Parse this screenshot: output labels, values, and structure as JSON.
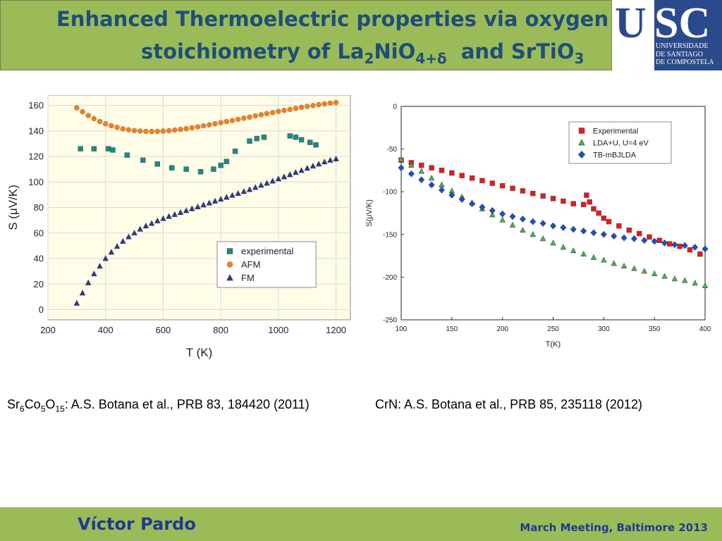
{
  "title": {
    "line1": "Enhanced Thermoelectric properties via oxygen",
    "line2_pre": "stoichiometry of La",
    "line2_sub1": "2",
    "line2_mid": "NiO",
    "line2_sub2": "4+δ",
    "line2_post": "  and SrTiO",
    "line2_sub3": "3"
  },
  "logo": {
    "letters_u": "U",
    "letters_sc": "SC",
    "line1": "UNIVERSIDADE",
    "line2": "DE SANTIAGO",
    "line3": "DE COMPOSTELA"
  },
  "captions": {
    "left": {
      "p1": "Sr",
      "s1": "6",
      "p2": "Co",
      "s2": "5",
      "p3": "O",
      "s3": "15",
      "p4": ": A.S. Botana et al., PRB 83, 184420 (2011)"
    },
    "right": "CrN: A.S. Botana et al., PRB 85, 235118 (2012)"
  },
  "footer": {
    "author": "Víctor Pardo",
    "event": "March Meeting, Baltimore 2013"
  },
  "colors": {
    "header_bg": "#9bbb59",
    "title": "#1f4e79",
    "footer_text": "#1f3a93"
  },
  "chart_data": [
    {
      "type": "scatter",
      "xlabel": "T (K)",
      "ylabel": "S (μV/K)",
      "xlim": [
        200,
        1250
      ],
      "ylim": [
        -8,
        168
      ],
      "xticks": [
        200,
        400,
        600,
        800,
        1000,
        1200
      ],
      "yticks": [
        0,
        20,
        40,
        60,
        80,
        100,
        120,
        140,
        160
      ],
      "legend_position": "lower-right",
      "series": [
        {
          "name": "experimental",
          "marker": "square",
          "color": "#1a8a84",
          "x": [
            313,
            360,
            410,
            425,
            475,
            530,
            580,
            630,
            680,
            730,
            775,
            800,
            820,
            850,
            900,
            925,
            950,
            1040,
            1060,
            1080,
            1110,
            1130
          ],
          "y": [
            126,
            126,
            126,
            125,
            121,
            117,
            114,
            111,
            110,
            108,
            110,
            113,
            116,
            124,
            132,
            134,
            135,
            136,
            135,
            133,
            131,
            129
          ]
        },
        {
          "name": "AFM",
          "marker": "circle",
          "color": "#e8832a",
          "x": [
            300,
            320,
            340,
            360,
            380,
            400,
            420,
            440,
            460,
            480,
            500,
            520,
            540,
            560,
            580,
            600,
            620,
            640,
            660,
            680,
            700,
            720,
            740,
            760,
            780,
            800,
            820,
            840,
            860,
            880,
            900,
            920,
            940,
            960,
            980,
            1000,
            1020,
            1040,
            1060,
            1080,
            1100,
            1120,
            1140,
            1160,
            1180,
            1200
          ],
          "y": [
            158,
            155,
            152,
            149.5,
            147.3,
            145.5,
            144,
            142.7,
            141.6,
            140.8,
            140.2,
            139.8,
            139.6,
            139.5,
            139.6,
            139.8,
            140.1,
            140.6,
            141.1,
            141.7,
            142.4,
            143.1,
            143.9,
            144.7,
            145.5,
            146.4,
            147.3,
            148.1,
            149,
            149.9,
            150.8,
            151.7,
            152.6,
            153.5,
            154.3,
            155.2,
            156,
            156.8,
            157.6,
            158.4,
            159.1,
            159.8,
            160.5,
            161.1,
            161.7,
            162.2
          ]
        },
        {
          "name": "FM",
          "marker": "triangle",
          "color": "#2c3a8f",
          "x": [
            300,
            320,
            340,
            360,
            380,
            400,
            420,
            440,
            460,
            480,
            500,
            520,
            540,
            560,
            580,
            600,
            620,
            640,
            660,
            680,
            700,
            720,
            740,
            760,
            780,
            800,
            820,
            840,
            860,
            880,
            900,
            920,
            940,
            960,
            980,
            1000,
            1020,
            1040,
            1060,
            1080,
            1100,
            1120,
            1140,
            1160,
            1180,
            1200
          ],
          "y": [
            5,
            13,
            21,
            28,
            34,
            40,
            45,
            49.5,
            53.5,
            57,
            60,
            63,
            65.5,
            67.5,
            69.5,
            71.3,
            73,
            74.5,
            76,
            77.5,
            79,
            80.5,
            82,
            83.5,
            85,
            86.5,
            88,
            89.5,
            91,
            92.5,
            94,
            95.7,
            97.4,
            99,
            100.7,
            102.4,
            104,
            105.7,
            107.4,
            109,
            110.7,
            112.4,
            114,
            115.7,
            117,
            118
          ]
        }
      ]
    },
    {
      "type": "scatter",
      "xlabel": "T(K)",
      "ylabel": "S(μV/K)",
      "xlim": [
        100,
        400
      ],
      "ylim": [
        -250,
        0
      ],
      "xticks": [
        100,
        150,
        200,
        250,
        300,
        350,
        400
      ],
      "yticks": [
        0,
        -50,
        -100,
        -150,
        -200,
        -250
      ],
      "legend_position": "top-right",
      "series": [
        {
          "name": "Experimental",
          "marker": "square",
          "color": "#e31a1c",
          "x": [
            100,
            110,
            120,
            130,
            140,
            150,
            160,
            170,
            180,
            190,
            200,
            210,
            220,
            230,
            240,
            250,
            260,
            270,
            280,
            283,
            286,
            290,
            295,
            300,
            305,
            315,
            325,
            335,
            345,
            355,
            365,
            375,
            385,
            395
          ],
          "y": [
            -63,
            -66,
            -69,
            -72,
            -75,
            -78,
            -81,
            -84,
            -87,
            -90,
            -93,
            -96,
            -99,
            -102,
            -105,
            -108,
            -111,
            -114,
            -115,
            -104,
            -112,
            -120,
            -125,
            -131,
            -135,
            -140,
            -145,
            -149,
            -153,
            -157,
            -161,
            -164,
            -168,
            -173
          ]
        },
        {
          "name": "LDA+U, U=4 eV",
          "marker": "triangle",
          "color": "#4caf50",
          "x": [
            100,
            110,
            120,
            130,
            140,
            150,
            160,
            170,
            180,
            190,
            200,
            210,
            220,
            230,
            240,
            250,
            260,
            270,
            280,
            290,
            300,
            310,
            320,
            330,
            340,
            350,
            360,
            370,
            380,
            390,
            400
          ],
          "y": [
            -62,
            -69,
            -76,
            -84,
            -92,
            -99,
            -106,
            -113,
            -120,
            -127,
            -133,
            -139,
            -145,
            -150,
            -155,
            -160,
            -165,
            -169,
            -173,
            -177,
            -180,
            -184,
            -187,
            -190,
            -193,
            -196,
            -199,
            -202,
            -204,
            -207,
            -210
          ]
        },
        {
          "name": "TB-mBJLDA",
          "marker": "diamond",
          "color": "#2150b8",
          "x": [
            100,
            110,
            120,
            130,
            140,
            150,
            160,
            170,
            180,
            190,
            200,
            210,
            220,
            230,
            240,
            250,
            260,
            270,
            280,
            290,
            300,
            310,
            320,
            330,
            340,
            350,
            360,
            370,
            380,
            390,
            400
          ],
          "y": [
            -72,
            -79,
            -86,
            -92,
            -98,
            -104,
            -109,
            -114,
            -118,
            -122,
            -126,
            -129,
            -132,
            -135,
            -137,
            -140,
            -142,
            -144,
            -146,
            -148,
            -150,
            -152,
            -154,
            -155,
            -157,
            -158,
            -160,
            -162,
            -163,
            -165,
            -167
          ]
        }
      ]
    }
  ]
}
